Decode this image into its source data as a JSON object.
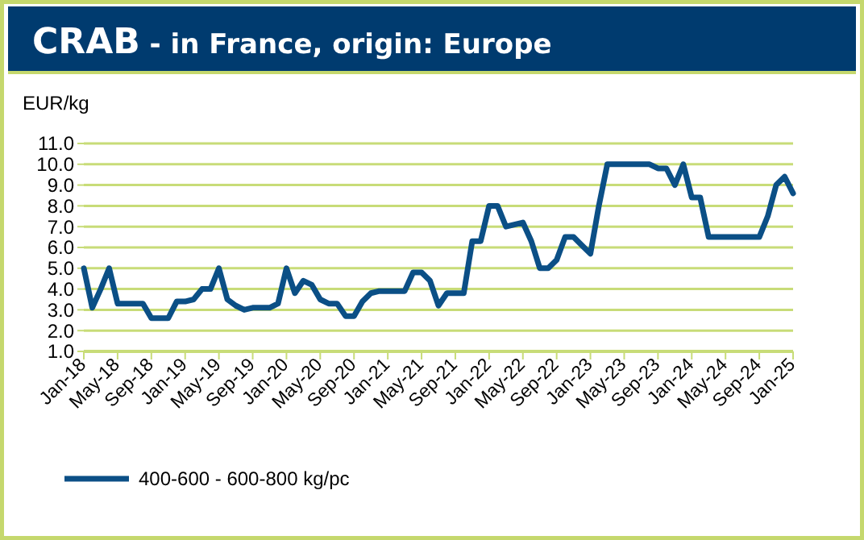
{
  "chart_data": {
    "type": "line",
    "title": "CRAB - in France, origin: Europe",
    "ylabel": "EUR/kg",
    "categories": [
      "Jan-18",
      null,
      null,
      null,
      "May-18",
      null,
      null,
      null,
      "Sep-18",
      null,
      null,
      null,
      "Jan-19",
      null,
      null,
      null,
      "May-19",
      null,
      null,
      null,
      "Sep-19",
      null,
      null,
      null,
      "Jan-20",
      null,
      null,
      null,
      "May-20",
      null,
      null,
      null,
      "Sep-20",
      null,
      null,
      null,
      "Jan-21",
      null,
      null,
      null,
      "May-21",
      null,
      null,
      null,
      "Sep-21",
      null,
      null,
      null,
      "Jan-22",
      null,
      null,
      null,
      "May-22",
      null,
      null,
      null,
      "Sep-22",
      null,
      null,
      null,
      "Jan-23",
      null,
      null,
      null,
      "May-23",
      null,
      null,
      null,
      "Sep-23",
      null,
      null,
      null,
      "Jan-24",
      null,
      null,
      null,
      "May-24",
      null,
      null,
      null,
      "Sep-24",
      null,
      null,
      null,
      "Jan-25"
    ],
    "series": [
      {
        "name": "400-600 - 600-800 kg/pc",
        "color": "#0b4f86",
        "values": [
          5.0,
          3.1,
          4.0,
          5.0,
          3.3,
          3.3,
          3.3,
          3.3,
          2.6,
          2.6,
          2.6,
          3.4,
          3.4,
          3.5,
          4.0,
          4.0,
          5.0,
          3.5,
          3.2,
          3.0,
          3.1,
          3.1,
          3.1,
          3.3,
          5.0,
          3.8,
          4.4,
          4.2,
          3.5,
          3.3,
          3.3,
          2.7,
          2.7,
          3.4,
          3.8,
          3.9,
          3.9,
          3.9,
          3.9,
          4.8,
          4.8,
          4.4,
          3.2,
          3.8,
          3.8,
          3.8,
          6.3,
          6.3,
          8.0,
          8.0,
          7.0,
          7.1,
          7.2,
          6.3,
          5.0,
          5.0,
          5.4,
          6.5,
          6.5,
          6.1,
          5.7,
          8.0,
          10.0,
          10.0,
          10.0,
          10.0,
          10.0,
          10.0,
          9.8,
          9.8,
          9.0,
          10.0,
          8.4,
          8.4,
          6.5,
          6.5,
          6.5,
          6.5,
          6.5,
          6.5,
          6.5,
          7.5,
          9.0,
          9.4,
          8.6
        ]
      }
    ],
    "ylim": [
      1,
      11
    ],
    "yticks": [
      {
        "value": 1,
        "label": "1.0"
      },
      {
        "value": 2,
        "label": "2.0"
      },
      {
        "value": 3,
        "label": "3.0"
      },
      {
        "value": 4,
        "label": "4.0"
      },
      {
        "value": 5,
        "label": "5.0"
      },
      {
        "value": 6,
        "label": "6.0"
      },
      {
        "value": 7,
        "label": "7.0"
      },
      {
        "value": 8,
        "label": "8.0"
      },
      {
        "value": 9,
        "label": "9.0"
      },
      {
        "value": 10,
        "label": "10.0"
      },
      {
        "value": 11,
        "label": "11.0"
      }
    ],
    "grid": "y",
    "legend": "bottom",
    "marker": "none",
    "line_style": "solid"
  }
}
